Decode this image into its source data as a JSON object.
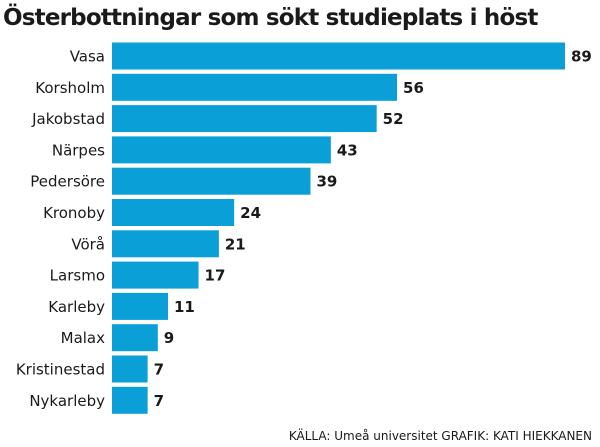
{
  "chart_data": {
    "type": "bar",
    "orientation": "horizontal",
    "title": "Österbottningar som sökt studieplats i höst",
    "categories": [
      "Vasa",
      "Korsholm",
      "Jakobstad",
      "Närpes",
      "Pedersöre",
      "Kronoby",
      "Vörå",
      "Larsmo",
      "Karleby",
      "Malax",
      "Kristinestad",
      "Nykarleby"
    ],
    "values": [
      89,
      56,
      52,
      43,
      39,
      24,
      21,
      17,
      11,
      9,
      7,
      7
    ],
    "xlabel": "",
    "ylabel": "",
    "xlim": [
      0,
      89
    ],
    "grid": false,
    "data_labels": true,
    "bar_color": "#0a9fd6"
  },
  "source": "KÄLLA: Umeå universitet GRAFIK: KATI HIEKKANEN"
}
